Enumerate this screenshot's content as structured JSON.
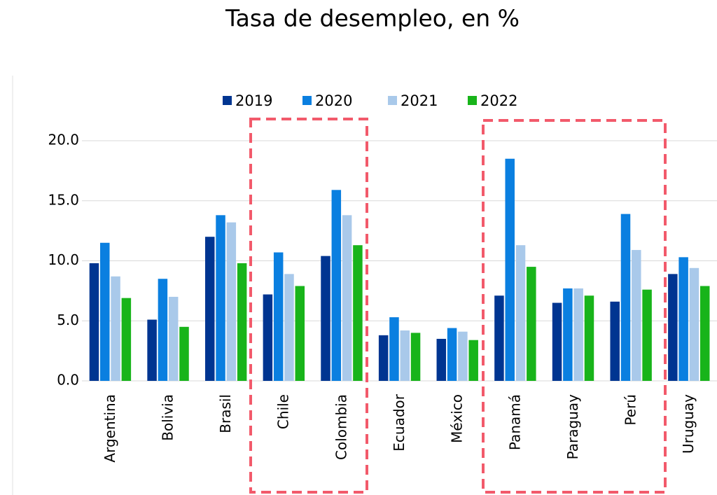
{
  "chart_data": {
    "type": "bar",
    "title": "Tasa de desempleo, en %",
    "categories": [
      "Argentina",
      "Bolivia",
      "Brasil",
      "Chile",
      "Colombia",
      "Ecuador",
      "México",
      "Panamá",
      "Paraguay",
      "Perú",
      "Uruguay"
    ],
    "series": [
      {
        "name": "2019",
        "color": "#003591",
        "values": [
          9.8,
          5.1,
          12.0,
          7.2,
          10.4,
          3.8,
          3.5,
          7.1,
          6.5,
          6.6,
          8.9
        ]
      },
      {
        "name": "2020",
        "color": "#0a7fe0",
        "values": [
          11.5,
          8.5,
          13.8,
          10.7,
          15.9,
          5.3,
          4.4,
          18.5,
          7.7,
          13.9,
          10.3
        ]
      },
      {
        "name": "2021",
        "color": "#a9c9ea",
        "values": [
          8.7,
          7.0,
          13.2,
          8.9,
          13.8,
          4.2,
          4.1,
          11.3,
          7.7,
          10.9,
          9.4
        ]
      },
      {
        "name": "2022",
        "color": "#18b41a",
        "values": [
          6.9,
          4.5,
          9.8,
          7.9,
          11.3,
          4.0,
          3.4,
          9.5,
          7.1,
          7.6,
          7.9
        ]
      }
    ],
    "ylim": [
      0,
      20
    ],
    "yticks": [
      {
        "value": 0,
        "label": "0.0"
      },
      {
        "value": 5,
        "label": "5.0"
      },
      {
        "value": 10,
        "label": "10.0"
      },
      {
        "value": 15,
        "label": "15.0"
      },
      {
        "value": 20,
        "label": "20.0"
      }
    ],
    "grid": true,
    "legend": "top"
  }
}
